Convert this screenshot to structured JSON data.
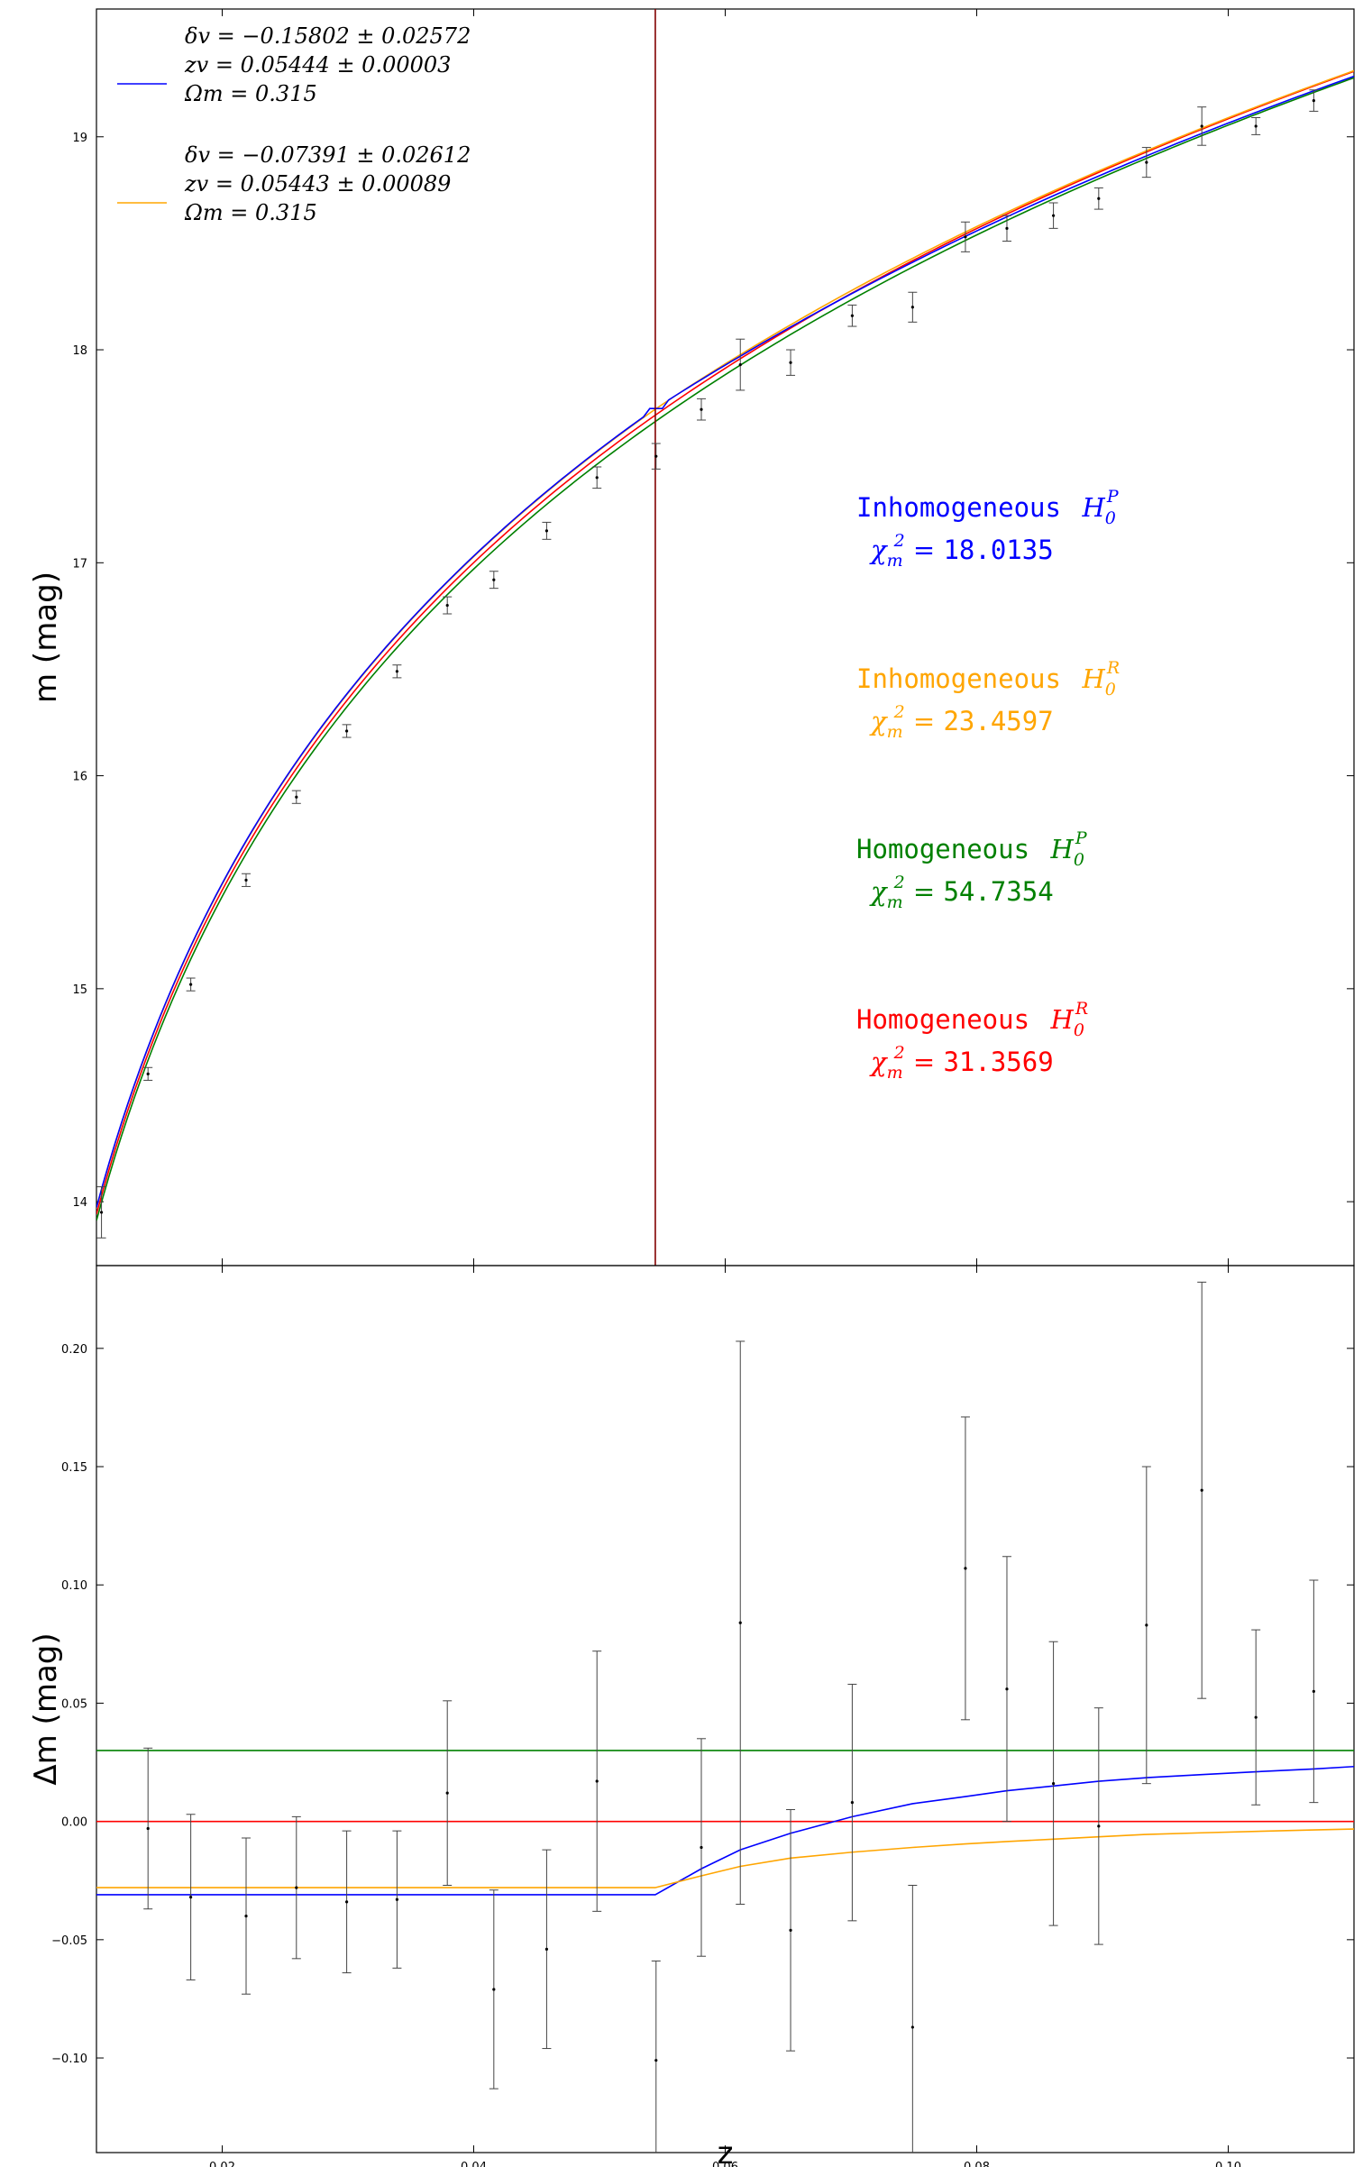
{
  "chart_data": [
    {
      "id": "top",
      "type": "line",
      "xlim": [
        0.01,
        0.11
      ],
      "ylim": [
        13.7,
        19.6
      ],
      "xticks": [
        0.02,
        0.04,
        0.06,
        0.08,
        0.1
      ],
      "yticks": [
        14,
        15,
        16,
        17,
        18,
        19
      ],
      "ytick_labels": [
        "14",
        "15",
        "16",
        "17",
        "18",
        "19"
      ],
      "ylabel": "m  (mag)",
      "vline_x": 0.05444,
      "vline_color": "#800000",
      "series": [
        {
          "key": "inh_p",
          "color": "#0000ff"
        },
        {
          "key": "inh_r",
          "color": "#ffa500"
        },
        {
          "key": "hom_p",
          "color": "#008000"
        },
        {
          "key": "hom_r",
          "color": "#ff0000"
        }
      ],
      "data_points": [
        {
          "x": 0.0104,
          "y": 13.95,
          "err": 0.12
        },
        {
          "x": 0.0141,
          "y": 14.6,
          "err": 0.03
        },
        {
          "x": 0.0175,
          "y": 15.02,
          "err": 0.03
        },
        {
          "x": 0.0219,
          "y": 15.51,
          "err": 0.03
        },
        {
          "x": 0.0259,
          "y": 15.9,
          "err": 0.03
        },
        {
          "x": 0.0299,
          "y": 16.21,
          "err": 0.03
        },
        {
          "x": 0.0339,
          "y": 16.49,
          "err": 0.03
        },
        {
          "x": 0.0379,
          "y": 16.8,
          "err": 0.04
        },
        {
          "x": 0.0416,
          "y": 16.92,
          "err": 0.04
        },
        {
          "x": 0.0458,
          "y": 17.15,
          "err": 0.04
        },
        {
          "x": 0.0498,
          "y": 17.4,
          "err": 0.05
        },
        {
          "x": 0.0545,
          "y": 17.5,
          "err": 0.06
        },
        {
          "x": 0.0581,
          "y": 17.72,
          "err": 0.05
        },
        {
          "x": 0.0612,
          "y": 17.93,
          "err": 0.12
        },
        {
          "x": 0.0652,
          "y": 17.94,
          "err": 0.06
        },
        {
          "x": 0.0701,
          "y": 18.16,
          "err": 0.05
        },
        {
          "x": 0.0749,
          "y": 18.2,
          "err": 0.07
        },
        {
          "x": 0.0791,
          "y": 18.53,
          "err": 0.07
        },
        {
          "x": 0.0824,
          "y": 18.57,
          "err": 0.06
        },
        {
          "x": 0.0861,
          "y": 18.63,
          "err": 0.06
        },
        {
          "x": 0.0897,
          "y": 18.71,
          "err": 0.05
        },
        {
          "x": 0.0935,
          "y": 18.88,
          "err": 0.07
        },
        {
          "x": 0.0979,
          "y": 19.05,
          "err": 0.09
        },
        {
          "x": 0.1022,
          "y": 19.05,
          "err": 0.04
        },
        {
          "x": 0.1068,
          "y": 19.17,
          "err": 0.05
        }
      ],
      "legend": {
        "location": "upper-left",
        "entries": [
          {
            "color": "#0000ff",
            "lines": [
              "δv = −0.15802 ± 0.02572",
              "zv = 0.05444 ± 0.00003",
              "Ωm = 0.315"
            ]
          },
          {
            "color": "#ffa500",
            "lines": [
              "δv = −0.07391 ± 0.02612",
              "zv = 0.05443 ± 0.00089",
              "Ωm = 0.315"
            ]
          }
        ]
      },
      "annotations": [
        {
          "color": "#0000ff",
          "name": "Inhomogeneous",
          "h0": "H0P",
          "chi": "χm2 = 18.0135"
        },
        {
          "color": "#ffa500",
          "name": "Inhomogeneous",
          "h0": "H0R",
          "chi": "χm2 = 23.4597"
        },
        {
          "color": "#008000",
          "name": "Homogeneous",
          "h0": "H0P",
          "chi": "χm2 = 54.7354"
        },
        {
          "color": "#ff0000",
          "name": "Homogeneous",
          "h0": "H0R",
          "chi": "χm2 = 31.3569"
        }
      ]
    },
    {
      "id": "bottom",
      "type": "line",
      "xlim": [
        0.01,
        0.11
      ],
      "ylim": [
        -0.14,
        0.235
      ],
      "xticks": [
        0.02,
        0.04,
        0.06,
        0.08,
        0.1
      ],
      "xtick_labels": [
        "0.02",
        "0.04",
        "0.06",
        "0.08",
        "0.10"
      ],
      "yticks": [
        -0.1,
        -0.05,
        0.0,
        0.05,
        0.1,
        0.15,
        0.2
      ],
      "ytick_labels": [
        "−0.10",
        "−0.05",
        "0.00",
        "0.05",
        "0.10",
        "0.15",
        "0.20"
      ],
      "xlabel": "z",
      "ylabel": "Δm  (mag)",
      "series": [
        {
          "key": "hom_p",
          "color": "#008000",
          "level": 0.03
        },
        {
          "key": "hom_r",
          "color": "#ff0000",
          "level": 0.0
        },
        {
          "key": "inh_p",
          "color": "#0000ff",
          "inner": -0.031,
          "z_break": 0.05444,
          "x": [
            0.0581,
            0.0612,
            0.0652,
            0.0701,
            0.0749,
            0.0791,
            0.0824,
            0.0861,
            0.0897,
            0.0935,
            0.0979,
            0.1022,
            0.1068,
            0.11
          ],
          "y": [
            -0.02,
            -0.012,
            -0.005,
            0.002,
            0.0075,
            0.0105,
            0.013,
            0.015,
            0.017,
            0.0185,
            0.0198,
            0.021,
            0.0222,
            0.0232
          ]
        },
        {
          "key": "inh_r",
          "color": "#ffa500",
          "inner": -0.028,
          "z_break": 0.05443,
          "x": [
            0.0581,
            0.0612,
            0.0652,
            0.0701,
            0.0749,
            0.0791,
            0.0824,
            0.0861,
            0.0897,
            0.0935,
            0.0979,
            0.1022,
            0.1068,
            0.11
          ],
          "y": [
            -0.023,
            -0.019,
            -0.0155,
            -0.013,
            -0.011,
            -0.0095,
            -0.0085,
            -0.0075,
            -0.0065,
            -0.0055,
            -0.0048,
            -0.0042,
            -0.0036,
            -0.0032
          ]
        }
      ],
      "data_points": [
        {
          "x": 0.0141,
          "y": -0.003,
          "err": 0.034
        },
        {
          "x": 0.0175,
          "y": -0.032,
          "err": 0.035
        },
        {
          "x": 0.0219,
          "y": -0.04,
          "err": 0.033
        },
        {
          "x": 0.0259,
          "y": -0.028,
          "err": 0.03
        },
        {
          "x": 0.0299,
          "y": -0.034,
          "err": 0.03
        },
        {
          "x": 0.0339,
          "y": -0.033,
          "err": 0.029
        },
        {
          "x": 0.0379,
          "y": 0.012,
          "err": 0.039
        },
        {
          "x": 0.0416,
          "y": -0.071,
          "err": 0.042
        },
        {
          "x": 0.0458,
          "y": -0.054,
          "err": 0.042
        },
        {
          "x": 0.0498,
          "y": 0.017,
          "err": 0.055
        },
        {
          "x": 0.0545,
          "y": -0.101,
          "err": 0.042
        },
        {
          "x": 0.0581,
          "y": -0.011,
          "err": 0.046
        },
        {
          "x": 0.0612,
          "y": 0.084,
          "err": 0.119
        },
        {
          "x": 0.0652,
          "y": -0.046,
          "err": 0.051
        },
        {
          "x": 0.0701,
          "y": 0.008,
          "err": 0.05
        },
        {
          "x": 0.0749,
          "y": -0.087,
          "err": 0.06
        },
        {
          "x": 0.0791,
          "y": 0.107,
          "err": 0.064
        },
        {
          "x": 0.0824,
          "y": 0.056,
          "err": 0.056
        },
        {
          "x": 0.0861,
          "y": 0.016,
          "err": 0.06
        },
        {
          "x": 0.0897,
          "y": -0.002,
          "err": 0.05
        },
        {
          "x": 0.0935,
          "y": 0.083,
          "err": 0.067
        },
        {
          "x": 0.0979,
          "y": 0.14,
          "err": 0.088
        },
        {
          "x": 0.1022,
          "y": 0.044,
          "err": 0.037
        },
        {
          "x": 0.1068,
          "y": 0.055,
          "err": 0.047
        }
      ]
    }
  ]
}
